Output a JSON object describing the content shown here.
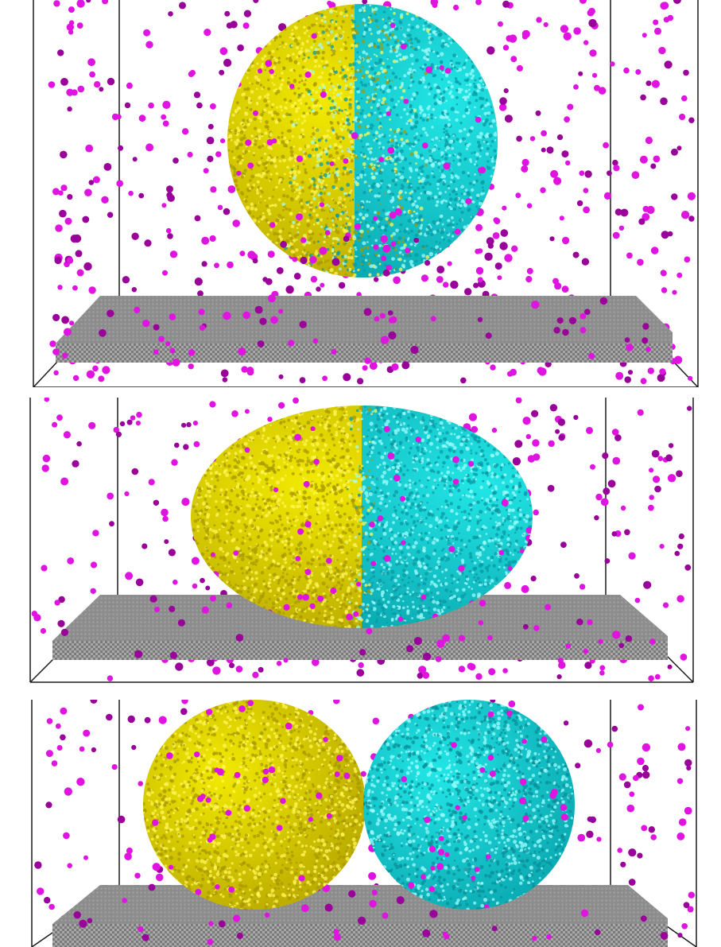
{
  "figure": {
    "kind": "molecular-dynamics-snapshots",
    "background": "#ffffff",
    "colors": {
      "droplet_a": "#f2ea00",
      "droplet_a_shade": "#b8a800",
      "droplet_b": "#22e6e6",
      "droplet_b_shade": "#0aa8b0",
      "vapor": "#e014e0",
      "vapor_shade": "#9a009a",
      "substrate_top": "#8c8c8c",
      "substrate_side": "#9a9a9a",
      "box_edge": "#1a1a1a"
    },
    "panels": [
      {
        "id": "top",
        "state": "single-droplet-suspended"
      },
      {
        "id": "middle",
        "state": "single-droplet-on-substrate"
      },
      {
        "id": "bottom",
        "state": "two-droplets-on-substrate"
      }
    ]
  }
}
